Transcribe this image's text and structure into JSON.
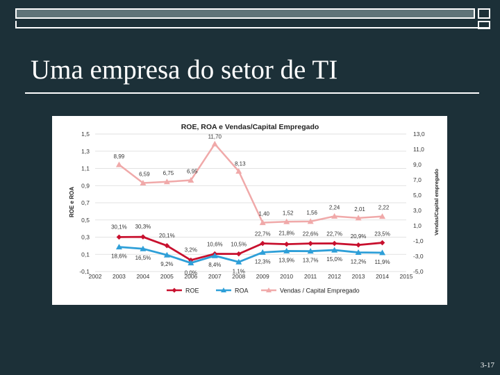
{
  "slide": {
    "title": "Uma empresa do setor de TI",
    "page_number": "3-17"
  },
  "chart_data": {
    "type": "line",
    "title": "ROE, ROA e Vendas/Capital Empregado",
    "ylabel_left": "ROE e ROA",
    "ylabel_right": "Vendas/Capital empregado",
    "x_ticks": [
      "2002",
      "2003",
      "2004",
      "2005",
      "2006",
      "2007",
      "2008",
      "2009",
      "2010",
      "2011",
      "2012",
      "2013",
      "2014",
      "2015"
    ],
    "y_left_ticks": [
      "1,5",
      "1,3",
      "1,1",
      "0,9",
      "0,7",
      "0,5",
      "0,3",
      "0,1",
      "-0,1"
    ],
    "y_right_ticks": [
      "13,0",
      "11,0",
      "9,0",
      "7,0",
      "5,0",
      "3,0",
      "1,0",
      "-1,0",
      "-3,0",
      "-5,0"
    ],
    "ylim_left": [
      -0.1,
      1.5
    ],
    "ylim_right": [
      -5.0,
      13.0
    ],
    "xlim": [
      2002,
      2015
    ],
    "grid": true,
    "legend": "bottom",
    "x": [
      2003,
      2004,
      2005,
      2006,
      2007,
      2008,
      2009,
      2010,
      2011,
      2012,
      2013,
      2014
    ],
    "series": [
      {
        "name": "ROE",
        "axis": "left",
        "color": "#c8102e",
        "marker": "diamond",
        "values": [
          0.301,
          0.303,
          0.201,
          0.032,
          0.106,
          0.105,
          0.227,
          0.218,
          0.226,
          0.227,
          0.209,
          0.235
        ],
        "labels": [
          "30,1%",
          "30,3%",
          "20,1%",
          "3,2%",
          "10,6%",
          "10,5%",
          "22,7%",
          "21,8%",
          "22,6%",
          "22,7%",
          "20,9%",
          "23,5%"
        ]
      },
      {
        "name": "ROA",
        "axis": "left",
        "color": "#2e9fd8",
        "marker": "triangle",
        "values": [
          0.186,
          0.165,
          0.092,
          0.0,
          0.084,
          0.011,
          0.123,
          0.139,
          0.137,
          0.15,
          0.122,
          0.119
        ],
        "labels": [
          "18,6%",
          "16,5%",
          "9,2%",
          "0,0%",
          "8,4%",
          "1,1%",
          "12,3%",
          "13,9%",
          "13,7%",
          "15,0%",
          "12,2%",
          "11,9%"
        ]
      },
      {
        "name": "Vendas / Capital Empregado",
        "axis": "right",
        "color": "#f0a9a9",
        "marker": "triangle",
        "values": [
          8.99,
          6.59,
          6.75,
          6.95,
          11.7,
          8.13,
          1.4,
          1.52,
          1.56,
          2.24,
          2.01,
          2.22
        ],
        "labels": [
          "8,99",
          "6,59",
          "6,75",
          "6,95",
          "11,70",
          "8,13",
          "1,40",
          "1,52",
          "1,56",
          "2,24",
          "2,01",
          "2,22"
        ]
      }
    ],
    "legend_entries": [
      "ROE",
      "ROA",
      "Vendas / Capital Empregado"
    ]
  }
}
